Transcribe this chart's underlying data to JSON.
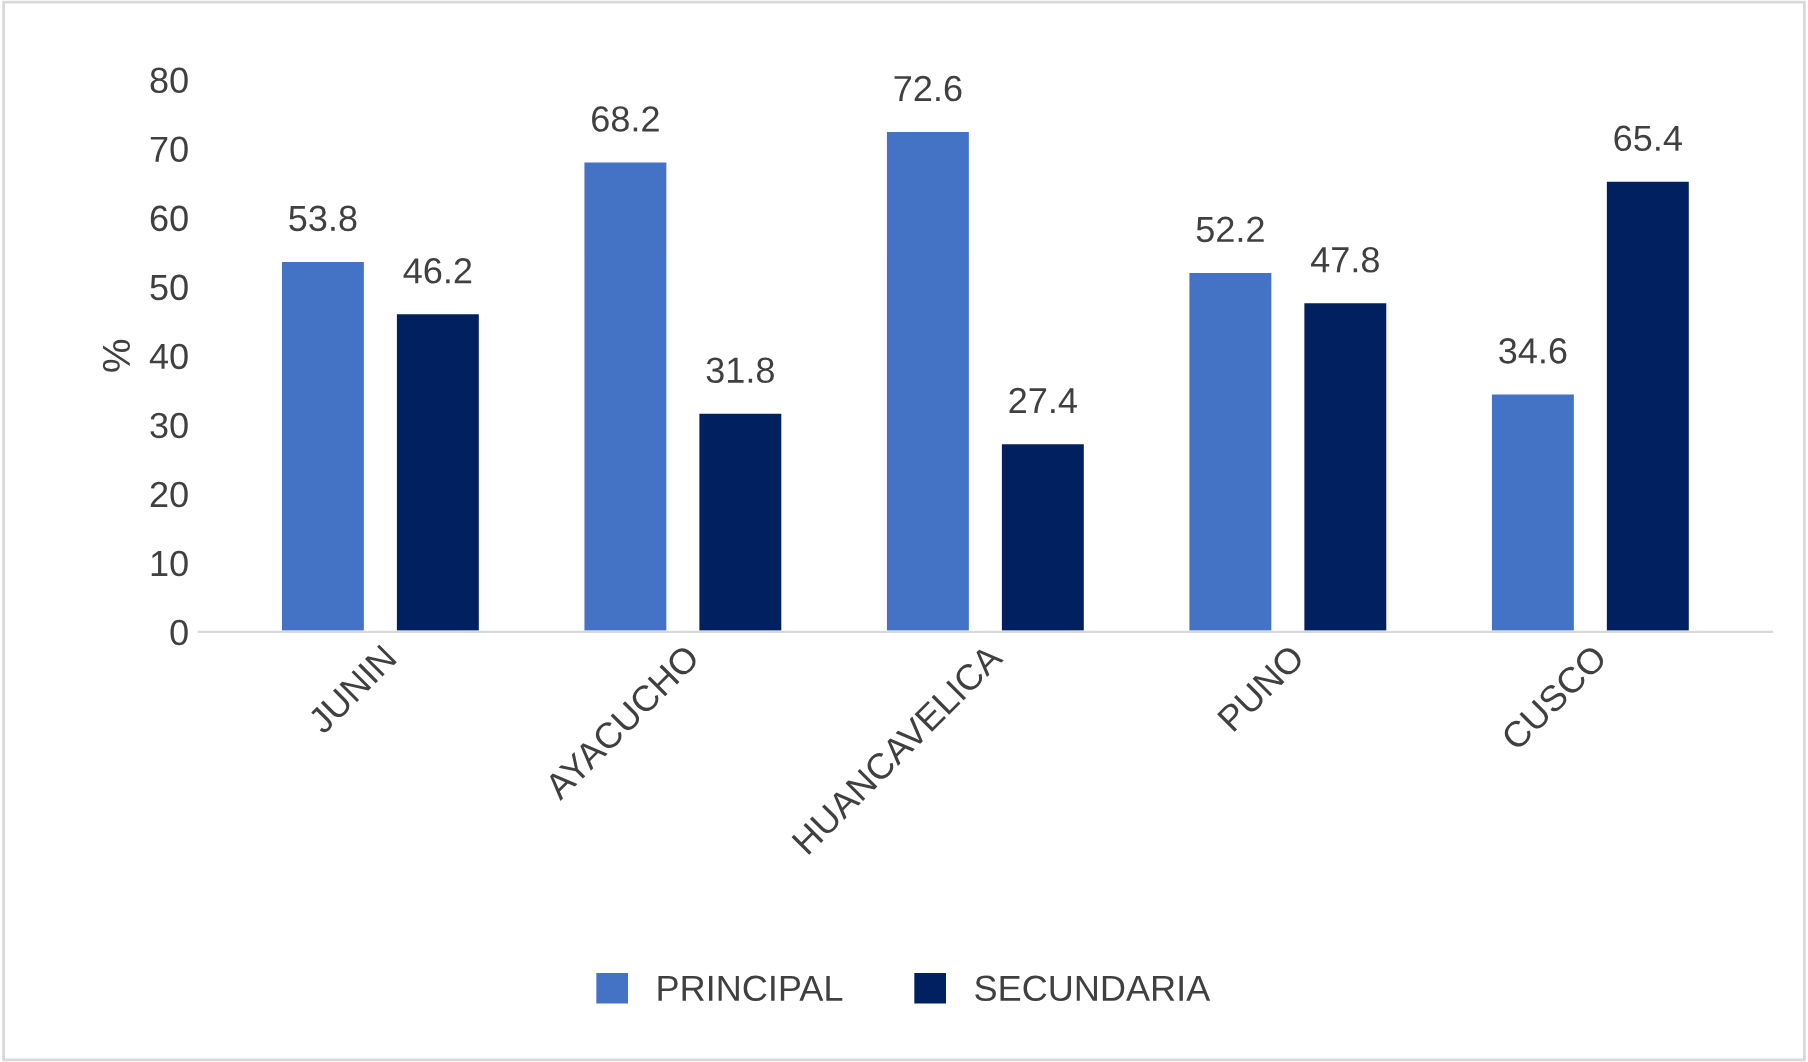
{
  "chart_data": {
    "type": "bar",
    "ylabel": "%",
    "categories": [
      "JUNIN",
      "AYACUCHO",
      "HUANCAVELICA",
      "PUNO",
      "CUSCO"
    ],
    "series": [
      {
        "name": "PRINCIPAL",
        "color": "#4472c4",
        "values": [
          53.8,
          68.2,
          72.6,
          52.2,
          34.6
        ]
      },
      {
        "name": "SECUNDARIA",
        "color": "#002060",
        "values": [
          46.2,
          31.8,
          27.4,
          47.8,
          65.4
        ]
      }
    ],
    "ylim": [
      0,
      80
    ],
    "yticks": [
      0,
      10,
      20,
      30,
      40,
      50,
      60,
      70,
      80
    ],
    "data_labels": true,
    "grid": false,
    "legend": "bottom"
  }
}
